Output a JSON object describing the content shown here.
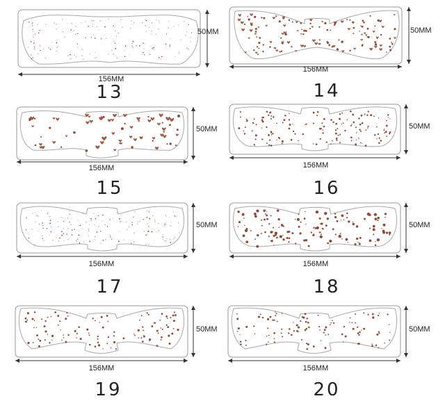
{
  "colors": {
    "outline": "#8a8a8a",
    "dot": "#8b4b3a",
    "heart": "#9a5d4c",
    "line": "#333333"
  },
  "patches": [
    {
      "number": "13",
      "width_label": "156MM",
      "height_label": "50MM",
      "pattern": "tiny-dots"
    },
    {
      "number": "14",
      "width_label": "156MM",
      "height_label": "50MM",
      "pattern": "hearts"
    },
    {
      "number": "15",
      "width_label": "156MM",
      "height_label": "50MM",
      "pattern": "hearts-large"
    },
    {
      "number": "16",
      "width_label": "156MM",
      "height_label": "50MM",
      "pattern": "dots"
    },
    {
      "number": "17",
      "width_label": "156MM",
      "height_label": "50MM",
      "pattern": "tiny-dots"
    },
    {
      "number": "18",
      "width_label": "156MM",
      "height_label": "50MM",
      "pattern": "dots-mixed"
    },
    {
      "number": "19",
      "width_label": "156MM",
      "height_label": "50MM",
      "pattern": "dots-sparse"
    },
    {
      "number": "20",
      "width_label": "156MM",
      "height_label": "50MM",
      "pattern": "dots-sparse"
    }
  ]
}
